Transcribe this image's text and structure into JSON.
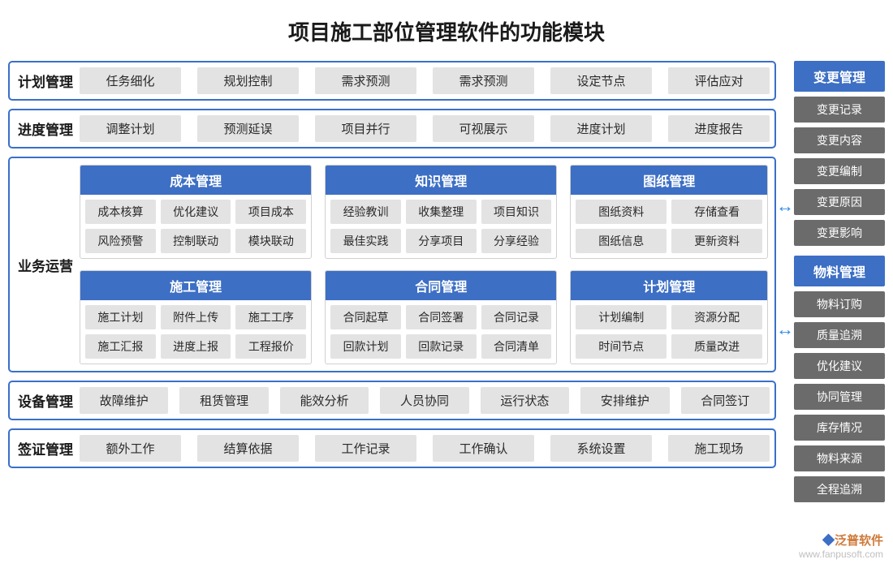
{
  "title": "项目施工部位管理软件的功能模块",
  "colors": {
    "module_header_bg": "#3d6fc4",
    "module_header_fg": "#ffffff",
    "border": "#3a6fc9",
    "chip_bg": "#e3e3e3",
    "chip_fg": "#2a2a2a",
    "side_item_bg": "#6b6b6b",
    "side_item_fg": "#ffffff",
    "arrow": "#2e8be6",
    "title_color": "#1a1a1a"
  },
  "rows": {
    "plan": {
      "label": "计划管理",
      "items": [
        "任务细化",
        "规划控制",
        "需求预测",
        "需求预测",
        "设定节点",
        "评估应对"
      ]
    },
    "progress": {
      "label": "进度管理",
      "items": [
        "调整计划",
        "预测延误",
        "项目并行",
        "可视展示",
        "进度计划",
        "进度报告"
      ]
    },
    "equipment": {
      "label": "设备管理",
      "items": [
        "故障维护",
        "租赁管理",
        "能效分析",
        "人员协同",
        "运行状态",
        "安排维护",
        "合同签订"
      ]
    },
    "visa": {
      "label": "签证管理",
      "items": [
        "额外工作",
        "结算依据",
        "工作记录",
        "工作确认",
        "系统设置",
        "施工现场"
      ]
    }
  },
  "business": {
    "label": "业务运营",
    "row1": [
      {
        "title": "成本管理",
        "chips": [
          [
            "成本核算",
            "优化建议",
            "项目成本"
          ],
          [
            "风险预警",
            "控制联动",
            "模块联动"
          ]
        ]
      },
      {
        "title": "知识管理",
        "chips": [
          [
            "经验教训",
            "收集整理",
            "项目知识"
          ],
          [
            "最佳实践",
            "分享项目",
            "分享经验"
          ]
        ]
      },
      {
        "title": "图纸管理",
        "chips": [
          [
            "图纸资料",
            "存储查看"
          ],
          [
            "图纸信息",
            "更新资料"
          ]
        ]
      }
    ],
    "row2": [
      {
        "title": "施工管理",
        "chips": [
          [
            "施工计划",
            "附件上传",
            "施工工序"
          ],
          [
            "施工汇报",
            "进度上报",
            "工程报价"
          ]
        ]
      },
      {
        "title": "合同管理",
        "chips": [
          [
            "合同起草",
            "合同签署",
            "合同记录"
          ],
          [
            "回款计划",
            "回款记录",
            "合同清单"
          ]
        ]
      },
      {
        "title": "计划管理",
        "chips": [
          [
            "计划编制",
            "资源分配"
          ],
          [
            "时间节点",
            "质量改进"
          ]
        ]
      }
    ]
  },
  "side": {
    "change": {
      "title": "变更管理",
      "items": [
        "变更记录",
        "变更内容",
        "变更编制",
        "变更原因",
        "变更影响"
      ]
    },
    "material": {
      "title": "物料管理",
      "items": [
        "物料订购",
        "质量追溯",
        "优化建议",
        "协同管理",
        "库存情况",
        "物料来源",
        "全程追溯"
      ]
    }
  },
  "watermark": {
    "brand": "泛普软件",
    "url": "www.fanpusoft.com"
  }
}
